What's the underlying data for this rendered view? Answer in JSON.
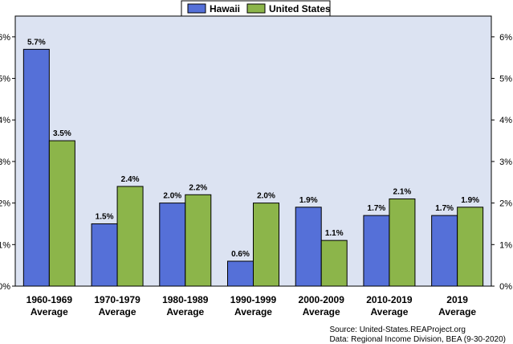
{
  "chart_data": {
    "type": "bar",
    "categories": [
      [
        "1960-1969",
        "Average"
      ],
      [
        "1970-1979",
        "Average"
      ],
      [
        "1980-1989",
        "Average"
      ],
      [
        "1990-1999",
        "Average"
      ],
      [
        "2000-2009",
        "Average"
      ],
      [
        "2010-2019",
        "Average"
      ],
      [
        "2019",
        "Average"
      ]
    ],
    "series": [
      {
        "name": "Hawaii",
        "color": "#5570d8",
        "values": [
          5.7,
          1.5,
          2.0,
          0.6,
          1.9,
          1.7,
          1.7
        ]
      },
      {
        "name": "United States",
        "color": "#8cb54a",
        "values": [
          3.5,
          2.4,
          2.2,
          2.0,
          1.1,
          2.1,
          1.9
        ]
      }
    ],
    "data_labels": [
      [
        "5.7%",
        "1.5%",
        "2.0%",
        "0.6%",
        "1.9%",
        "1.7%",
        "1.7%"
      ],
      [
        "3.5%",
        "2.4%",
        "2.2%",
        "2.0%",
        "1.1%",
        "2.1%",
        "1.9%"
      ]
    ],
    "ylim": [
      0,
      6.5
    ],
    "yticks": [
      0,
      1,
      2,
      3,
      4,
      5,
      6
    ],
    "ytick_labels": [
      "0%",
      "1%",
      "2%",
      "3%",
      "4%",
      "5%",
      "6%"
    ],
    "grid": false,
    "legend_placement": "top-center",
    "plot_background": "#dce3f2",
    "source_lines": [
      "Source: United-States.REAProject.org",
      "Data: Regional Income Division, BEA (9-30-2020)"
    ]
  }
}
